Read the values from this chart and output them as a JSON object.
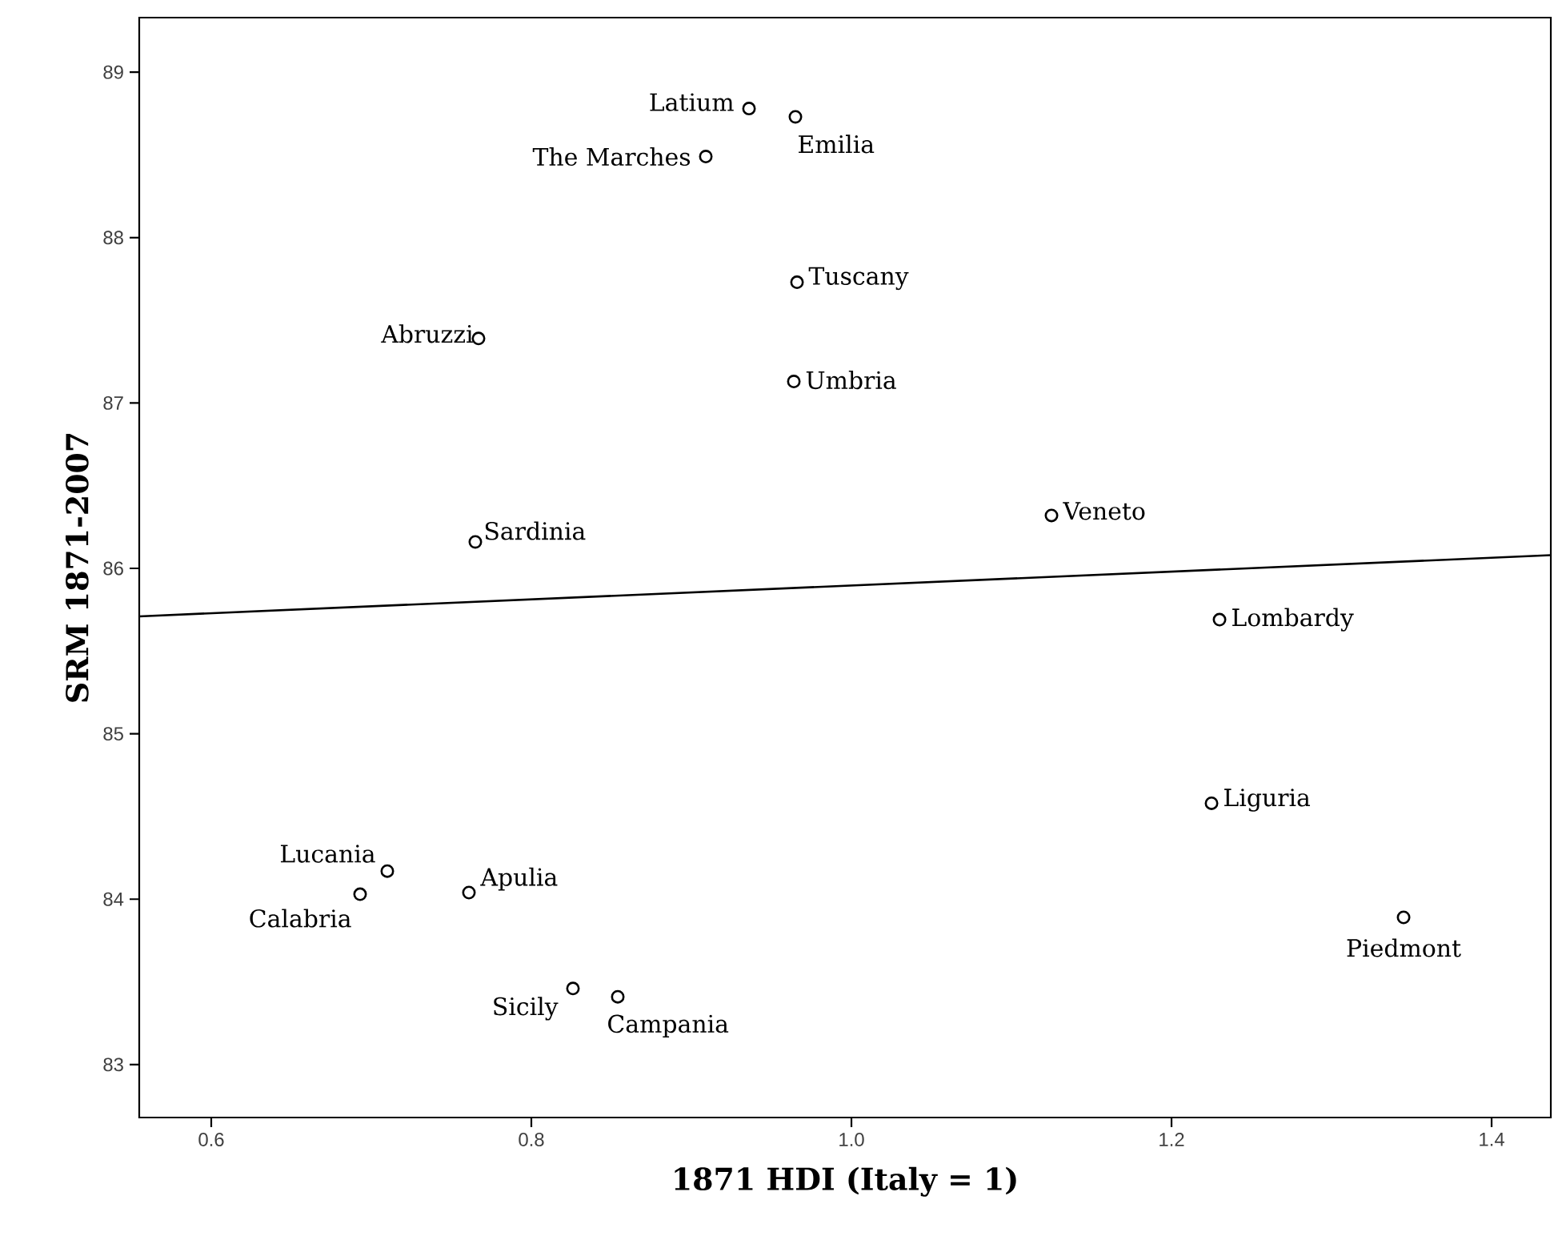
{
  "chart_data": {
    "type": "scatter",
    "xlabel": "1871 HDI (Italy = 1)",
    "ylabel": "SRM 1871-2007",
    "xlim": [
      0.555,
      1.437
    ],
    "ylim": [
      82.68,
      89.33
    ],
    "xticks": [
      0.6,
      0.8,
      {
        "value": 1,
        "label": "1.0"
      },
      1.2,
      1.4
    ],
    "yticks": [
      83,
      84,
      85,
      86,
      87,
      88,
      89
    ],
    "series": [
      {
        "marker": "circle",
        "color": "#000000",
        "x": [
          0.936,
          0.965,
          0.909,
          0.966,
          0.964,
          0.767,
          0.765,
          1.125,
          1.23,
          1.225,
          1.345,
          0.71,
          0.693,
          0.761,
          0.826,
          0.854
        ],
        "values": [
          88.78,
          88.73,
          88.49,
          87.73,
          87.13,
          87.39,
          86.16,
          86.32,
          85.69,
          84.58,
          83.89,
          84.17,
          84.03,
          84.04,
          83.46,
          83.41
        ]
      },
      {
        "type": "line",
        "marker": "none",
        "color": "#000000",
        "x": [
          0.555,
          1.437
        ],
        "values": [
          85.71,
          86.08
        ]
      }
    ],
    "annotations": [
      {
        "text": "Latium",
        "x": 0.936,
        "y": 88.78
      },
      {
        "text": "Emilia",
        "x": 0.965,
        "y": 88.73
      },
      {
        "text": "The Marches",
        "x": 0.909,
        "y": 88.49
      },
      {
        "text": "Tuscany",
        "x": 0.966,
        "y": 87.73
      },
      {
        "text": "Umbria",
        "x": 0.964,
        "y": 87.13
      },
      {
        "text": "Abruzzi",
        "x": 0.767,
        "y": 87.39
      },
      {
        "text": "Sardinia",
        "x": 0.765,
        "y": 86.16
      },
      {
        "text": "Veneto",
        "x": 1.125,
        "y": 86.32
      },
      {
        "text": "Lombardy",
        "x": 1.23,
        "y": 85.69
      },
      {
        "text": "Liguria",
        "x": 1.225,
        "y": 84.58
      },
      {
        "text": "Piedmont",
        "x": 1.345,
        "y": 83.89
      },
      {
        "text": "Lucania",
        "x": 0.71,
        "y": 84.17
      },
      {
        "text": "Calabria",
        "x": 0.693,
        "y": 84.03
      },
      {
        "text": "Apulia",
        "x": 0.761,
        "y": 84.04
      },
      {
        "text": "Sicily",
        "x": 0.826,
        "y": 83.46
      },
      {
        "text": "Campania",
        "x": 0.854,
        "y": 83.41
      }
    ]
  }
}
